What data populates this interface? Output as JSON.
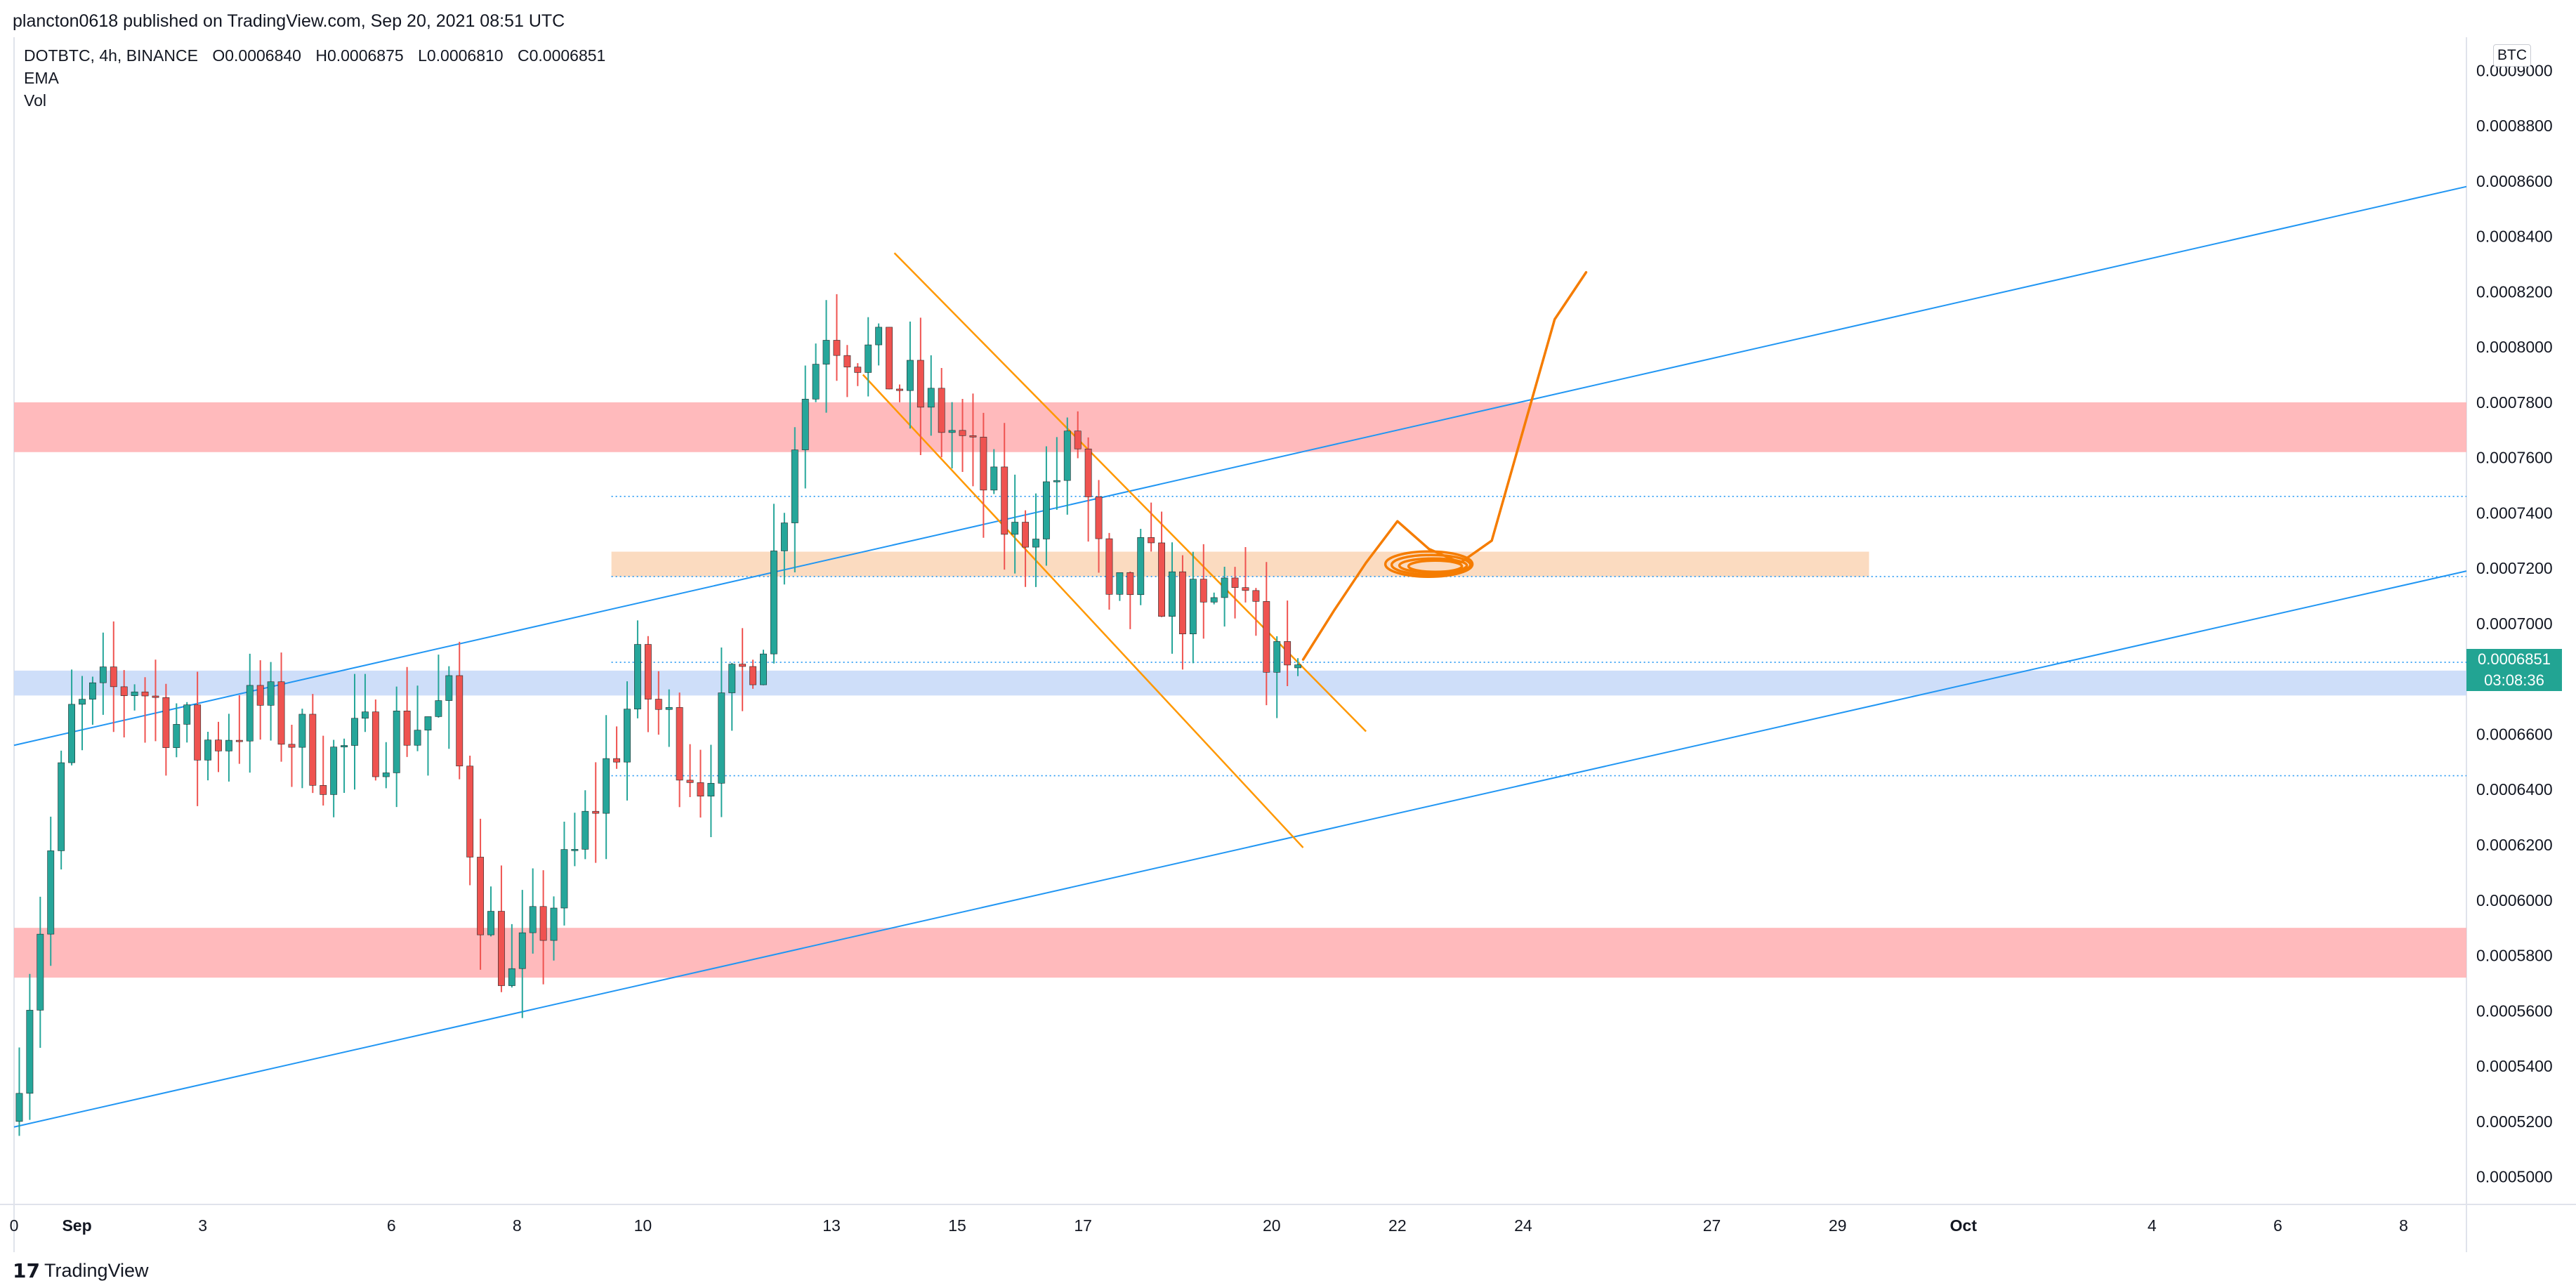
{
  "header": {
    "published_by": "plancton0618 published on TradingView.com, Sep 20, 2021 08:51 UTC"
  },
  "legend": {
    "symbol": "DOTBTC, 4h, BINANCE",
    "open": "O0.0006840",
    "high": "H0.0006875",
    "low": "L0.0006810",
    "close": "C0.0006851",
    "indicator_1": "EMA",
    "indicator_2": "Vol"
  },
  "price_axis": {
    "currency": "BTC",
    "labels": [
      "0.0009000",
      "0.0008800",
      "0.0008600",
      "0.0008400",
      "0.0008200",
      "0.0008000",
      "0.0007800",
      "0.0007600",
      "0.0007400",
      "0.0007200",
      "0.0007000",
      "0.0006600",
      "0.0006400",
      "0.0006200",
      "0.0006000",
      "0.0005800",
      "0.0005600",
      "0.0005400",
      "0.0005200",
      "0.0005000"
    ],
    "current_price": "0.0006851",
    "countdown": "03:08:36"
  },
  "time_axis": {
    "labels": [
      "0",
      "Sep",
      "3",
      "6",
      "8",
      "10",
      "13",
      "15",
      "17",
      "20",
      "22",
      "24",
      "27",
      "29",
      "Oct",
      "4",
      "6",
      "8"
    ]
  },
  "footer": {
    "brand": "TradingView",
    "logo_glyph": "𝟭𝟳"
  },
  "colors": {
    "up": "#26a69a",
    "down": "#ef5350",
    "resistance_zone": "#ffb3b5",
    "support_zone": "#c9daf8",
    "pivot_zone": "#fbd7b9",
    "trendline": "#2196f3",
    "channel": "#ff9800",
    "drawing": "#f57c00",
    "badge": "#22a493"
  },
  "chart_data": {
    "type": "candlestick",
    "symbol": "DOTBTC",
    "interval": "4h",
    "exchange": "BINANCE",
    "x_range": [
      "2021-08-31",
      "2021-10-09"
    ],
    "y_range": [
      0.00049,
      0.000912
    ],
    "ohlc_last": {
      "open": 0.000684,
      "high": 0.0006875,
      "low": 0.000681,
      "close": 0.0006851
    },
    "waypoints": [
      {
        "date": "2021-08-31",
        "price": 0.00052
      },
      {
        "date": "2021-09-01",
        "price": 0.000665
      },
      {
        "date": "2021-09-02",
        "price": 0.00068
      },
      {
        "date": "2021-09-03",
        "price": 0.000655
      },
      {
        "date": "2021-09-04",
        "price": 0.00067
      },
      {
        "date": "2021-09-05",
        "price": 0.00065
      },
      {
        "date": "2021-09-06",
        "price": 0.00066
      },
      {
        "date": "2021-09-07",
        "price": 0.00067
      },
      {
        "date": "2021-09-07T12:00",
        "price": 0.0006
      },
      {
        "date": "2021-09-08",
        "price": 0.00057
      },
      {
        "date": "2021-09-09",
        "price": 0.000615
      },
      {
        "date": "2021-09-10",
        "price": 0.00068
      },
      {
        "date": "2021-09-11",
        "price": 0.000645
      },
      {
        "date": "2021-09-12",
        "price": 0.0007
      },
      {
        "date": "2021-09-12T12:00",
        "price": 0.00077
      },
      {
        "date": "2021-09-13",
        "price": 0.00081
      },
      {
        "date": "2021-09-14",
        "price": 0.00079
      },
      {
        "date": "2021-09-15",
        "price": 0.00077
      },
      {
        "date": "2021-09-16",
        "price": 0.00073
      },
      {
        "date": "2021-09-17",
        "price": 0.000765
      },
      {
        "date": "2021-09-17T12:00",
        "price": 0.0007
      },
      {
        "date": "2021-09-18",
        "price": 0.00072
      },
      {
        "date": "2021-09-19",
        "price": 0.0007
      },
      {
        "date": "2021-09-19T12:00",
        "price": 0.00072
      },
      {
        "date": "2021-09-20",
        "price": 0.000685
      }
    ],
    "zones": [
      {
        "name": "resistance-upper",
        "from": 0.000762,
        "to": 0.00078
      },
      {
        "name": "resistance-lower",
        "from": 0.000572,
        "to": 0.00059
      },
      {
        "name": "support",
        "from": 0.000674,
        "to": 0.000683
      },
      {
        "name": "pivot",
        "from": 0.000717,
        "to": 0.000726,
        "x_from": "2021-09-09T12:00",
        "x_to": "2021-09-29T12:00"
      }
    ],
    "horizontal_levels": [
      0.000746,
      0.000717,
      0.000686,
      0.000645
    ],
    "trendlines": [
      {
        "from": {
          "date": "2021-08-31",
          "price": 0.000656
        },
        "to": {
          "date": "2021-10-09",
          "price": 0.000858
        }
      },
      {
        "from": {
          "date": "2021-08-31",
          "price": 0.000518
        },
        "to": {
          "date": "2021-10-09",
          "price": 0.000719
        }
      }
    ],
    "channel": [
      {
        "from": {
          "date": "2021-09-14",
          "price": 0.000834
        },
        "to": {
          "date": "2021-09-21T12:00",
          "price": 0.000661
        }
      },
      {
        "from": {
          "date": "2021-09-13T12:00",
          "price": 0.00079
        },
        "to": {
          "date": "2021-09-20T12:00",
          "price": 0.000619
        }
      }
    ]
  }
}
